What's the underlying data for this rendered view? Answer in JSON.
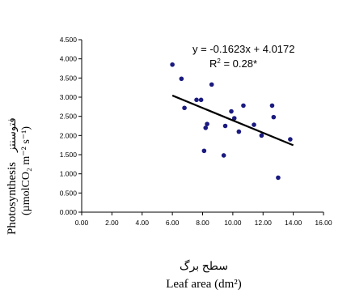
{
  "chart_data": {
    "type": "scatter",
    "xlabel_fa": "سطح برگ",
    "xlabel": "Leaf area (dm²)",
    "ylabel": "Photosynthesis",
    "ylabel_fa": "فتوسنتز",
    "yunit": "(µmolCO₂ m⁻² s⁻¹)",
    "xlim": [
      0,
      16
    ],
    "ylim": [
      0,
      4.5
    ],
    "xticks": [
      "0.00",
      "2.00",
      "4.00",
      "6.00",
      "8.00",
      "10.00",
      "12.00",
      "14.00",
      "16.00"
    ],
    "yticks": [
      "0.000",
      "0.500",
      "1.000",
      "1.500",
      "2.000",
      "2.500",
      "3.000",
      "3.500",
      "4.000",
      "4.500"
    ],
    "grid": false,
    "legend": "none",
    "marker_color": "#1a1a80",
    "line_color": "#000000",
    "points": [
      {
        "x": 6.0,
        "y": 3.85
      },
      {
        "x": 6.6,
        "y": 3.48
      },
      {
        "x": 6.8,
        "y": 2.72
      },
      {
        "x": 7.6,
        "y": 2.93
      },
      {
        "x": 7.9,
        "y": 2.93
      },
      {
        "x": 8.1,
        "y": 1.6
      },
      {
        "x": 8.2,
        "y": 2.2
      },
      {
        "x": 8.3,
        "y": 2.3
      },
      {
        "x": 8.6,
        "y": 3.33
      },
      {
        "x": 9.4,
        "y": 1.48
      },
      {
        "x": 9.5,
        "y": 2.25
      },
      {
        "x": 9.9,
        "y": 2.63
      },
      {
        "x": 10.1,
        "y": 2.45
      },
      {
        "x": 10.4,
        "y": 2.1
      },
      {
        "x": 10.7,
        "y": 2.78
      },
      {
        "x": 11.4,
        "y": 2.28
      },
      {
        "x": 11.9,
        "y": 2.0
      },
      {
        "x": 12.6,
        "y": 2.78
      },
      {
        "x": 12.7,
        "y": 2.48
      },
      {
        "x": 13.0,
        "y": 0.9
      },
      {
        "x": 13.8,
        "y": 1.9
      }
    ],
    "trendline": {
      "slope": -0.1623,
      "intercept": 4.0172,
      "x_range": [
        6.0,
        14.0
      ]
    },
    "equation_text": "y = -0.1623x + 4.0172",
    "r2_label": "R",
    "r2_exp": "2",
    "r2_value": " = 0.28*"
  }
}
